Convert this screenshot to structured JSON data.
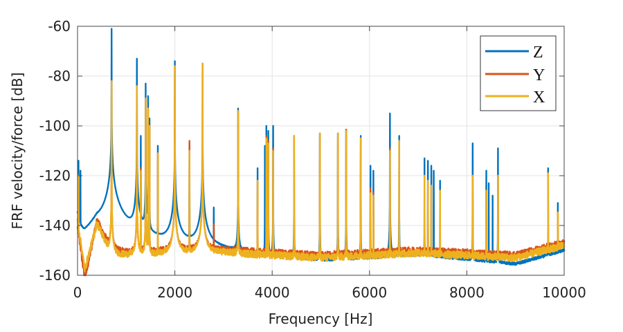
{
  "chart_data": {
    "type": "line",
    "title": "",
    "xlabel": "Frequency [Hz]",
    "ylabel": "FRF velocity/force [dB]",
    "xlim": [
      0,
      10000
    ],
    "ylim": [
      -160,
      -60
    ],
    "xticks": [
      0,
      2000,
      4000,
      6000,
      8000,
      10000
    ],
    "yticks": [
      -60,
      -80,
      -100,
      -120,
      -140,
      -160
    ],
    "xtick_labels": [
      "0",
      "2000",
      "4000",
      "6000",
      "8000",
      "10000"
    ],
    "ytick_labels": [
      "-60",
      "-80",
      "-100",
      "-120",
      "-140",
      "-160"
    ],
    "grid": true,
    "legend_position": "top-right",
    "series": [
      {
        "name": "Z",
        "color": "#0072BD",
        "peak_halfwidth_hz": 0.05,
        "floor": [
          [
            0,
            -135
          ],
          [
            150,
            -150
          ],
          [
            400,
            -140
          ],
          [
            1000,
            -152
          ],
          [
            3000,
            -152
          ],
          [
            5000,
            -156
          ],
          [
            7000,
            -152
          ],
          [
            9000,
            -156
          ],
          [
            10000,
            -150
          ]
        ],
        "peaks": [
          [
            20,
            -114
          ],
          [
            60,
            -118
          ],
          [
            700,
            -61
          ],
          [
            1220,
            -73
          ],
          [
            1300,
            -104
          ],
          [
            1400,
            -83
          ],
          [
            1450,
            -88
          ],
          [
            1480,
            -97
          ],
          [
            1650,
            -108
          ],
          [
            2000,
            -74
          ],
          [
            2300,
            -107
          ],
          [
            2570,
            -75
          ],
          [
            2800,
            -133
          ],
          [
            3300,
            -93
          ],
          [
            3700,
            -117
          ],
          [
            3850,
            -108
          ],
          [
            3880,
            -100
          ],
          [
            3920,
            -102
          ],
          [
            4020,
            -100
          ],
          [
            4450,
            -104
          ],
          [
            4980,
            -103
          ],
          [
            5350,
            -103
          ],
          [
            5520,
            -101.5
          ],
          [
            5820,
            -104
          ],
          [
            6020,
            -116
          ],
          [
            6080,
            -118
          ],
          [
            6420,
            -95
          ],
          [
            6610,
            -104
          ],
          [
            7130,
            -113
          ],
          [
            7200,
            -114
          ],
          [
            7270,
            -116
          ],
          [
            7320,
            -118
          ],
          [
            7450,
            -122
          ],
          [
            8120,
            -107
          ],
          [
            8400,
            -118
          ],
          [
            8450,
            -123
          ],
          [
            8530,
            -128
          ],
          [
            8640,
            -109
          ],
          [
            9670,
            -117
          ],
          [
            9870,
            -131
          ]
        ]
      },
      {
        "name": "Y",
        "color": "#D95319",
        "peak_halfwidth_hz": 0.02,
        "floor": [
          [
            0,
            -140
          ],
          [
            150,
            -162
          ],
          [
            400,
            -138
          ],
          [
            700,
            -150
          ],
          [
            1000,
            -151
          ],
          [
            3000,
            -150
          ],
          [
            5000,
            -152
          ],
          [
            7000,
            -150
          ],
          [
            9000,
            -152
          ],
          [
            10000,
            -147
          ]
        ],
        "peaks": [
          [
            20,
            -120
          ],
          [
            700,
            -82
          ],
          [
            1220,
            -84
          ],
          [
            1300,
            -117
          ],
          [
            1400,
            -89
          ],
          [
            1450,
            -93
          ],
          [
            1480,
            -100
          ],
          [
            1650,
            -111
          ],
          [
            2000,
            -76
          ],
          [
            2300,
            -106
          ],
          [
            2570,
            -75
          ],
          [
            2800,
            -140
          ],
          [
            3300,
            -94
          ],
          [
            3700,
            -122
          ],
          [
            3880,
            -104
          ],
          [
            3920,
            -106
          ],
          [
            4020,
            -109
          ],
          [
            4450,
            -104
          ],
          [
            4980,
            -103
          ],
          [
            5350,
            -103
          ],
          [
            5520,
            -101.5
          ],
          [
            5820,
            -105
          ],
          [
            6020,
            -125
          ],
          [
            6080,
            -127
          ],
          [
            6420,
            -109
          ],
          [
            6610,
            -106
          ],
          [
            7130,
            -120
          ],
          [
            7200,
            -122
          ],
          [
            7270,
            -124
          ],
          [
            7450,
            -126
          ],
          [
            8120,
            -120
          ],
          [
            8400,
            -126
          ],
          [
            8640,
            -120
          ],
          [
            9670,
            -119
          ],
          [
            9870,
            -135
          ]
        ]
      },
      {
        "name": "X",
        "color": "#EDB120",
        "peak_halfwidth_hz": 0.02,
        "floor": [
          [
            0,
            -138
          ],
          [
            150,
            -158
          ],
          [
            400,
            -139
          ],
          [
            700,
            -152
          ],
          [
            1000,
            -152
          ],
          [
            3000,
            -151
          ],
          [
            5000,
            -153
          ],
          [
            7000,
            -151
          ],
          [
            9000,
            -153
          ],
          [
            10000,
            -148
          ]
        ],
        "peaks": [
          [
            20,
            -120
          ],
          [
            700,
            -82
          ],
          [
            1220,
            -84
          ],
          [
            1300,
            -118
          ],
          [
            1400,
            -89
          ],
          [
            1450,
            -93
          ],
          [
            1480,
            -100
          ],
          [
            1650,
            -111
          ],
          [
            2000,
            -76
          ],
          [
            2300,
            -110
          ],
          [
            2570,
            -75
          ],
          [
            3300,
            -94
          ],
          [
            3700,
            -122
          ],
          [
            3880,
            -105
          ],
          [
            3920,
            -107
          ],
          [
            4020,
            -110
          ],
          [
            4450,
            -104
          ],
          [
            4980,
            -103
          ],
          [
            5350,
            -103
          ],
          [
            5520,
            -102
          ],
          [
            5820,
            -105
          ],
          [
            6020,
            -127
          ],
          [
            6080,
            -128
          ],
          [
            6420,
            -110
          ],
          [
            6610,
            -106
          ],
          [
            7130,
            -120
          ],
          [
            7200,
            -122
          ],
          [
            7270,
            -124
          ],
          [
            7450,
            -126
          ],
          [
            8120,
            -120
          ],
          [
            8400,
            -126
          ],
          [
            8640,
            -120
          ],
          [
            9670,
            -119
          ],
          [
            9870,
            -135
          ]
        ]
      }
    ]
  }
}
